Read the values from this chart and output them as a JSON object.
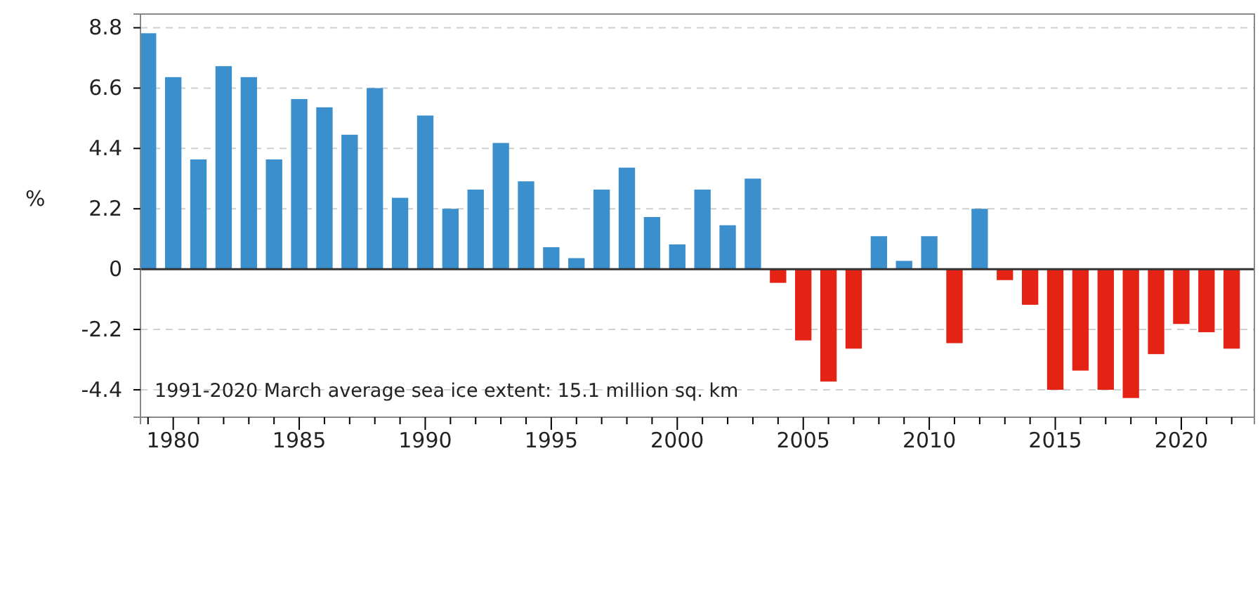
{
  "chart_data": {
    "type": "bar",
    "ylabel": "%",
    "x": [
      1979,
      1980,
      1981,
      1982,
      1983,
      1984,
      1985,
      1986,
      1987,
      1988,
      1989,
      1990,
      1991,
      1992,
      1993,
      1994,
      1995,
      1996,
      1997,
      1998,
      1999,
      2000,
      2001,
      2002,
      2003,
      2004,
      2005,
      2006,
      2007,
      2008,
      2009,
      2010,
      2011,
      2012,
      2013,
      2014,
      2015,
      2016,
      2017,
      2018,
      2019,
      2020,
      2021,
      2022
    ],
    "values": [
      8.6,
      7.0,
      4.0,
      7.4,
      7.0,
      4.0,
      6.2,
      5.9,
      4.9,
      6.6,
      2.6,
      5.6,
      2.2,
      2.9,
      4.6,
      3.2,
      0.8,
      0.4,
      2.9,
      3.7,
      1.9,
      0.9,
      2.9,
      1.6,
      3.3,
      -0.5,
      -2.6,
      -4.1,
      -2.9,
      1.2,
      0.3,
      1.2,
      -2.7,
      2.2,
      -0.4,
      -1.3,
      -4.4,
      -3.7,
      -4.4,
      -4.7,
      -3.1,
      -2.0,
      -2.3,
      -2.9
    ],
    "colors": [
      "#3a8fcc",
      "#3a8fcc",
      "#3a8fcc",
      "#3a8fcc",
      "#3a8fcc",
      "#3a8fcc",
      "#3a8fcc",
      "#3a8fcc",
      "#3a8fcc",
      "#3a8fcc",
      "#3a8fcc",
      "#3a8fcc",
      "#3a8fcc",
      "#3a8fcc",
      "#3a8fcc",
      "#3a8fcc",
      "#3a8fcc",
      "#3a8fcc",
      "#3a8fcc",
      "#3a8fcc",
      "#3a8fcc",
      "#3a8fcc",
      "#3a8fcc",
      "#3a8fcc",
      "#3a8fcc",
      "#e42314",
      "#e42314",
      "#e42314",
      "#e42314",
      "#3a8fcc",
      "#3a8fcc",
      "#3a8fcc",
      "#e42314",
      "#3a8fcc",
      "#e42314",
      "#e42314",
      "#e42314",
      "#e42314",
      "#e42314",
      "#e42314",
      "#e42314",
      "#e42314",
      "#e42314",
      "#e42314"
    ],
    "xlim": [
      1978.7,
      2022.9
    ],
    "xticks": [
      {
        "value": 1979,
        "label": null
      },
      1980,
      {
        "value": 1981,
        "label": null
      },
      {
        "value": 1982,
        "label": null
      },
      {
        "value": 1983,
        "label": null
      },
      {
        "value": 1984,
        "label": null
      },
      1985,
      {
        "value": 1986,
        "label": null
      },
      {
        "value": 1987,
        "label": null
      },
      {
        "value": 1988,
        "label": null
      },
      {
        "value": 1989,
        "label": null
      },
      1990,
      {
        "value": 1991,
        "label": null
      },
      {
        "value": 1992,
        "label": null
      },
      {
        "value": 1993,
        "label": null
      },
      {
        "value": 1994,
        "label": null
      },
      1995,
      {
        "value": 1996,
        "label": null
      },
      {
        "value": 1997,
        "label": null
      },
      {
        "value": 1998,
        "label": null
      },
      {
        "value": 1999,
        "label": null
      },
      2000,
      {
        "value": 2001,
        "label": null
      },
      {
        "value": 2002,
        "label": null
      },
      {
        "value": 2003,
        "label": null
      },
      {
        "value": 2004,
        "label": null
      },
      2005,
      {
        "value": 2006,
        "label": null
      },
      {
        "value": 2007,
        "label": null
      },
      {
        "value": 2008,
        "label": null
      },
      {
        "value": 2009,
        "label": null
      },
      2010,
      {
        "value": 2011,
        "label": null
      },
      {
        "value": 2012,
        "label": null
      },
      {
        "value": 2013,
        "label": null
      },
      {
        "value": 2014,
        "label": null
      },
      2015,
      {
        "value": 2016,
        "label": null
      },
      {
        "value": 2017,
        "label": null
      },
      {
        "value": 2018,
        "label": null
      },
      {
        "value": 2019,
        "label": null
      },
      2020,
      {
        "value": 2021,
        "label": null
      },
      {
        "value": 2022,
        "label": null
      }
    ],
    "ylim": [
      -5.4,
      9.3
    ],
    "yticks": [
      -4.4,
      -2.2,
      0,
      2.2,
      4.4,
      6.6,
      8.8
    ],
    "grid": "y",
    "annotations": [
      "1991-2020 March average sea ice extent: 15.1 million sq. km"
    ]
  }
}
